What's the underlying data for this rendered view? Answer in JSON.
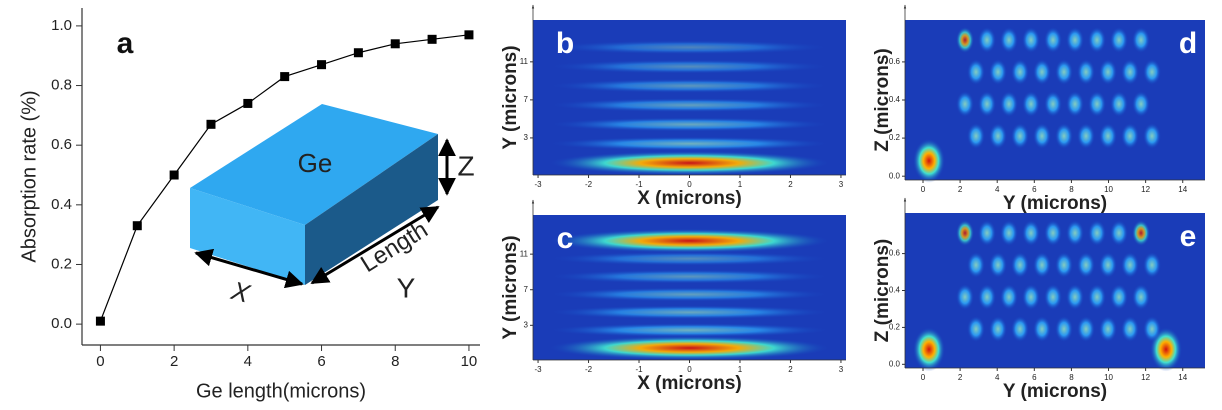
{
  "chart_data": [
    {
      "type": "line",
      "panel_label": "a",
      "x_label": "Ge length(microns)",
      "y_label": "Absorption rate (%)",
      "x": [
        0,
        1,
        2,
        3,
        4,
        5,
        6,
        7,
        8,
        9,
        10
      ],
      "values": [
        0.01,
        0.33,
        0.5,
        0.67,
        0.74,
        0.83,
        0.87,
        0.91,
        0.94,
        0.955,
        0.97
      ],
      "color": "#000000",
      "xlim": [
        -0.5,
        10.3
      ],
      "ylim": [
        -0.07,
        1.06
      ],
      "xticks": [
        0,
        2,
        4,
        6,
        8,
        10
      ],
      "yticks": [
        {
          "value": 0,
          "label": "0.0"
        },
        0.2,
        0.4,
        0.6,
        0.8,
        {
          "value": 1,
          "label": "1.0"
        }
      ],
      "annotations": [
        "Ge",
        "Z",
        "X",
        "Length",
        "Y"
      ]
    },
    {
      "type": "heatmap",
      "panel_label": "b",
      "x_label": "X (microns)",
      "y_label": "Y (microns)",
      "xlim": [
        -3.1,
        3.1
      ],
      "ylim": [
        -0.9,
        15.4
      ],
      "xticks": [
        -3,
        -2,
        -1,
        0,
        1,
        2,
        3
      ],
      "yticks": [
        3,
        7,
        11
      ]
    },
    {
      "type": "heatmap",
      "panel_label": "c",
      "x_label": "X (microns)",
      "y_label": "Y (microns)",
      "xlim": [
        -3.1,
        3.1
      ],
      "ylim": [
        -0.9,
        15.4
      ],
      "xticks": [
        -3,
        -2,
        -1,
        0,
        1,
        2,
        3
      ],
      "yticks": [
        3,
        7,
        11
      ]
    },
    {
      "type": "heatmap",
      "panel_label": "d",
      "x_label": "Y (microns)",
      "y_label": "Z (microns)",
      "xlim": [
        -0.97,
        15.2
      ],
      "ylim": [
        -0.02,
        0.82
      ],
      "xticks": [
        0,
        2,
        4,
        6,
        8,
        10,
        12,
        14
      ],
      "yticks": [
        {
          "value": 0,
          "label": "0.0"
        },
        0.2,
        0.4,
        0.6
      ]
    },
    {
      "type": "heatmap",
      "panel_label": "e",
      "x_label": "Y (microns)",
      "y_label": "Z (microns)",
      "xlim": [
        -0.97,
        15.2
      ],
      "ylim": [
        -0.02,
        0.82
      ],
      "xticks": [
        0,
        2,
        4,
        6,
        8,
        10,
        12,
        14
      ],
      "yticks": [
        {
          "value": 0,
          "label": "0.0"
        },
        0.2,
        0.4,
        0.6
      ]
    }
  ]
}
